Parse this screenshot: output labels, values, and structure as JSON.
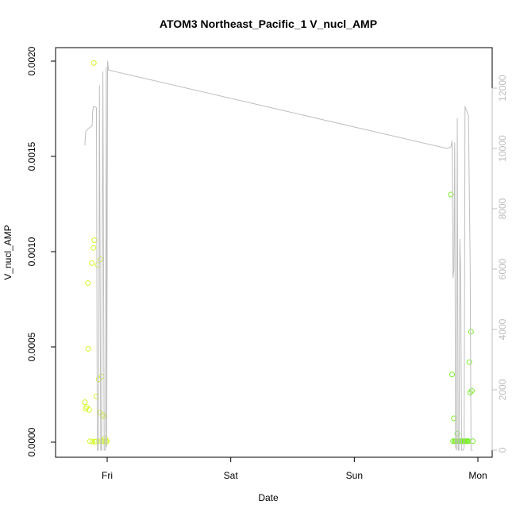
{
  "chart_data": {
    "type": "scatter",
    "title": "ATOM3 Northeast_Pacific_1 V_nucl_AMP",
    "xlabel": "Date",
    "ylabel": "V_nucl_AMP",
    "xlim": [
      "Thu 19:20",
      "Mon 00:15"
    ],
    "ylim": [
      0,
      0.002
    ],
    "y_ticks": [
      "0.0000",
      "0.0005",
      "0.0010",
      "0.0015",
      "0.0020"
    ],
    "y2lim": [
      0,
      12500
    ],
    "y2_ticks": [
      "0",
      "2000",
      "4000",
      "6000",
      "8000",
      "10000",
      "12000"
    ],
    "x_ticks": [
      "Fri",
      "Sat",
      "Sun",
      "Mon"
    ],
    "colors": {
      "points_first_leg": "#d4fb2e",
      "points_second_leg": "#7cf02a",
      "secondary_line": "#bebebe"
    },
    "series": [
      {
        "kind": "points",
        "color_key": "points_first_leg",
        "x": [
          "Thu 19:40",
          "Thu 19:50",
          "Thu 20:00",
          "Thu 20:15",
          "Thu 20:20",
          "Thu 20:30",
          "Thu 20:40",
          "Thu 21:00",
          "Thu 21:10",
          "Thu 21:20",
          "Thu 21:25",
          "Thu 21:30",
          "Thu 21:40",
          "Thu 21:45",
          "Thu 21:50",
          "Thu 21:55",
          "Thu 22:10",
          "Thu 22:20",
          "Thu 22:25",
          "Thu 22:35",
          "Thu 22:45",
          "Thu 22:55",
          "Thu 23:00",
          "Thu 23:10",
          "Thu 23:20",
          "Thu 23:25",
          "Thu 23:30",
          "Thu 23:35",
          "Thu 23:45",
          "Thu 23:50",
          "Thu 23:55"
        ],
        "y": [
          0.00021,
          0.000175,
          0.000185,
          0.000835,
          0.00049,
          0.00017,
          5e-06,
          0.00094,
          3e-06,
          0.00102,
          0.00199,
          0.00106,
          3e-06,
          3e-06,
          3e-06,
          0.00024,
          0.00093,
          0.00033,
          5e-06,
          0.000155,
          0.00096,
          0.000345,
          5e-06,
          0.000145,
          0.000135,
          3e-06,
          5e-06,
          2e-05,
          5e-06,
          3e-06,
          5e-06
        ]
      },
      {
        "kind": "points",
        "color_key": "points_second_leg",
        "x": [
          "Sun 18:45",
          "Sun 19:00",
          "Sun 19:10",
          "Sun 19:20",
          "Sun 19:30",
          "Sun 19:40",
          "Sun 19:50",
          "Sun 20:00",
          "Sun 20:10",
          "Sun 20:20",
          "Sun 20:30",
          "Sun 20:40",
          "Sun 20:50",
          "Sun 21:00",
          "Sun 21:10",
          "Sun 21:20",
          "Sun 21:30",
          "Sun 21:40",
          "Sun 21:50",
          "Sun 22:00",
          "Sun 22:10",
          "Sun 22:20",
          "Sun 22:30",
          "Sun 22:40",
          "Sun 22:50",
          "Sun 23:00"
        ],
        "y": [
          0.0013,
          0.000355,
          5e-06,
          0.000125,
          5e-06,
          5e-06,
          5e-06,
          4.5e-05,
          5e-06,
          5e-06,
          5e-06,
          5e-06,
          5e-06,
          5e-06,
          5e-06,
          5e-06,
          5e-06,
          5e-06,
          5e-06,
          5e-06,
          5e-06,
          0.00042,
          0.00026,
          0.00058,
          0.00027,
          5e-06
        ]
      },
      {
        "kind": "line",
        "axis": "secondary",
        "color_key": "secondary_line",
        "x": [
          "Thu 19:40",
          "Thu 19:50",
          "Thu 20:15",
          "Thu 20:40",
          "Thu 21:05",
          "Thu 21:10",
          "Thu 21:20",
          "Thu 21:40",
          "Thu 21:55",
          "Thu 22:05",
          "Thu 22:20",
          "Thu 22:30",
          "Thu 22:45",
          "Thu 22:55",
          "Thu 23:10",
          "Thu 23:25",
          "Thu 23:40",
          "Thu 23:50",
          "Thu 23:55",
          "Fri 00:05",
          "Fri 00:15",
          "Sun 18:00",
          "Sun 18:45",
          "Sun 19:00",
          "Sun 19:10",
          "Sun 19:20",
          "Sun 19:30",
          "Sun 19:40",
          "Sun 19:50",
          "Sun 20:00",
          "Sun 20:10",
          "Sun 20:20",
          "Sun 20:30",
          "Sun 20:40",
          "Sun 20:50",
          "Sun 21:00",
          "Sun 21:10",
          "Sun 21:20",
          "Sun 21:30",
          "Sun 21:40",
          "Sun 21:50",
          "Sun 22:00",
          "Sun 22:10",
          "Sun 22:30",
          "Sun 22:40",
          "Sun 22:50",
          "Sun 23:00"
        ],
        "y": [
          10100,
          10550,
          10650,
          10700,
          10750,
          11200,
          11380,
          11380,
          11350,
          0,
          0,
          12100,
          0,
          0,
          12550,
          0,
          0,
          12700,
          100,
          12900,
          12600,
          10000,
          10050,
          10250,
          5700,
          6000,
          10200,
          100,
          0,
          11000,
          0,
          0,
          7000,
          5800,
          0,
          0,
          0,
          100,
          11400,
          11300,
          11250,
          11150,
          11100,
          6100,
          0,
          0,
          0
        ]
      }
    ]
  }
}
